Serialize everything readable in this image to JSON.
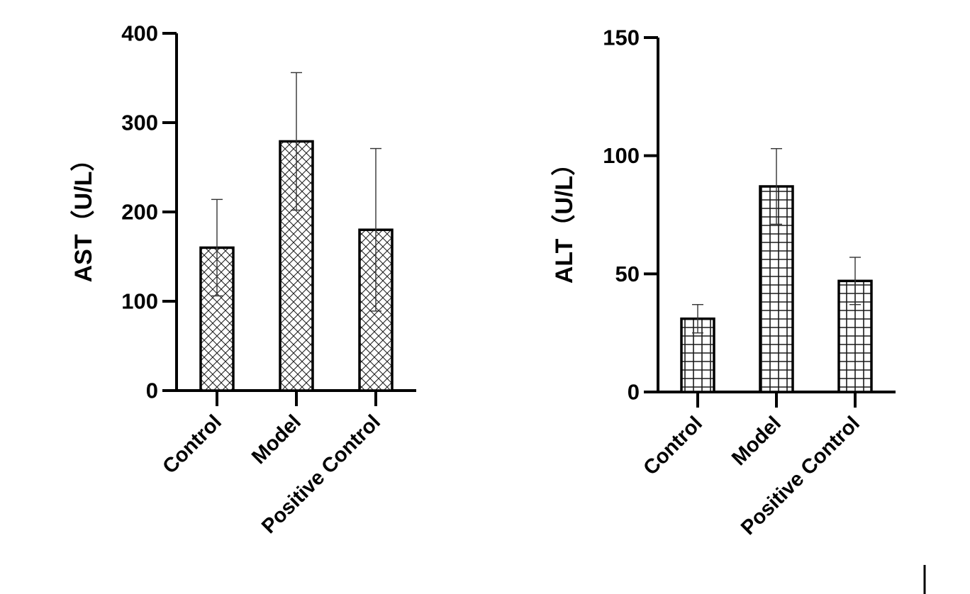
{
  "chart_data": [
    {
      "type": "bar",
      "categories": [
        "Control",
        "Model",
        "Positive Control"
      ],
      "values": [
        160,
        279,
        180
      ],
      "error_bars": [
        54,
        77,
        91
      ],
      "ylabel": "AST（U/L）",
      "ylim": [
        0,
        400
      ],
      "yticks": [
        0,
        100,
        200,
        300,
        400
      ],
      "ytick_labels": [
        "0",
        "100",
        "200",
        "300",
        "400"
      ],
      "bar_pattern": "crosshatch",
      "grid": false,
      "legend": "none"
    },
    {
      "type": "bar",
      "categories": [
        "Control",
        "Model",
        "Positive Control"
      ],
      "values": [
        31,
        87,
        47
      ],
      "error_bars": [
        6,
        16,
        10
      ],
      "ylabel": "ALT（U/L）",
      "ylim": [
        0,
        150
      ],
      "yticks": [
        0,
        50,
        100,
        150
      ],
      "ytick_labels": [
        "0",
        "50",
        "100",
        "150"
      ],
      "bar_pattern": "grid",
      "grid": false,
      "legend": "none"
    }
  ]
}
